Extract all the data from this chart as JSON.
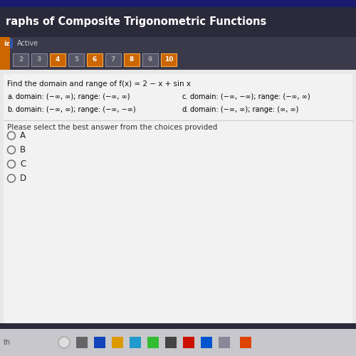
{
  "title": "raphs of Composite Trigonometric Functions",
  "nav_numbers": [
    "2",
    "3",
    "4",
    "5",
    "6",
    "7",
    "8",
    "9",
    "10"
  ],
  "nav_highlighted": [
    "4",
    "6",
    "8",
    "10"
  ],
  "question": "Find the domain and range of f(x) = 2 − x + sin x",
  "choice_a": "domain: (−∞, ∞); range: (−∞, ∞)",
  "choice_b": "domain: (−∞, ∞); range: (−∞, −∞)",
  "choice_c": "domain: (−∞, −∞); range: (−∞, ∞)",
  "choice_d": "domain: (−∞, ∞); range: (∞, ∞)",
  "instruction": "Please select the best answer from the choices provided",
  "radio_options": [
    "A",
    "B",
    "C",
    "D"
  ],
  "header_bg": "#2a2a3a",
  "header_top_bg": "#1a1a6e",
  "header_text_color": "#ffffff",
  "nav_bg": "#3a3a4a",
  "nav_btn_bg": "#555566",
  "nav_btn_text": "#aaaaaa",
  "nav_highlight_bg": "#cc6600",
  "nav_highlight_border": "#ffaa44",
  "content_bg": "#e0e0e0",
  "content_white": "#f0f0f0",
  "content_text_color": "#111111",
  "radio_circle_color": "#888888",
  "taskbar_bg": "#c8c8d0",
  "footer_bg": "#101020"
}
